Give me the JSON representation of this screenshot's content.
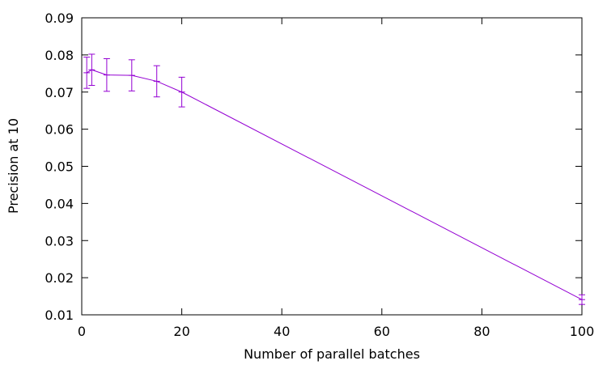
{
  "chart_data": {
    "type": "line",
    "title": "",
    "xlabel": "Number of parallel batches",
    "ylabel": "Precision at 10",
    "xlim": [
      0,
      100
    ],
    "ylim": [
      0.01,
      0.09
    ],
    "x_ticks": [
      0,
      20,
      40,
      60,
      80,
      100
    ],
    "x_tick_labels": [
      "0",
      "20",
      "40",
      "60",
      "80",
      "100"
    ],
    "y_ticks": [
      0.01,
      0.02,
      0.03,
      0.04,
      0.05,
      0.06,
      0.07,
      0.08,
      0.09
    ],
    "y_tick_labels": [
      "0.01",
      "0.02",
      "0.03",
      "0.04",
      "0.05",
      "0.06",
      "0.07",
      "0.08",
      "0.09"
    ],
    "grid": false,
    "legend": "none",
    "series": [
      {
        "color": "#9400d3",
        "x": [
          1,
          2,
          5,
          10,
          15,
          20,
          100
        ],
        "y": [
          0.0752,
          0.076,
          0.0746,
          0.0745,
          0.0729,
          0.07,
          0.0141
        ],
        "y_err_low": [
          0.071,
          0.0718,
          0.0702,
          0.0703,
          0.0687,
          0.066,
          0.0128
        ],
        "y_err_high": [
          0.0794,
          0.0802,
          0.079,
          0.0787,
          0.0771,
          0.074,
          0.0154
        ]
      }
    ]
  }
}
